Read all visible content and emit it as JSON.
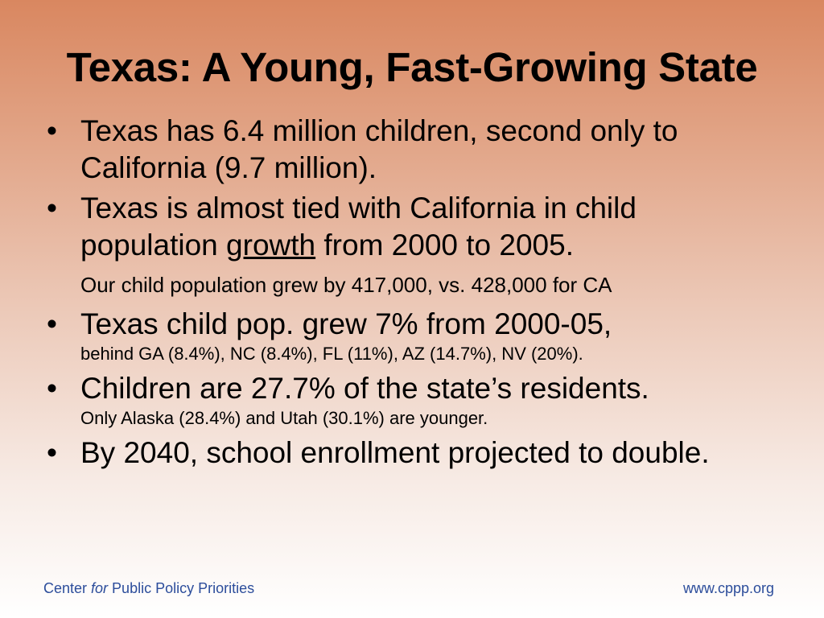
{
  "title": "Texas: A Young, Fast-Growing State",
  "bullet_char": "•",
  "bullets": [
    {
      "text": "Texas has 6.4 million children, second only to California (9.7 million)."
    },
    {
      "text_before": "Texas is almost tied with California in child population ",
      "underlined": "growth",
      "text_after": " from 2000 to 2005."
    },
    {
      "text": "Texas child pop. grew 7% from 2000-05,",
      "small": "behind GA (8.4%), NC (8.4%), FL (11%), AZ (14.7%), NV (20%)."
    },
    {
      "text": "Children are 27.7% of the state’s residents.",
      "small": "Only Alaska (28.4%) and Utah (30.1%) are younger."
    },
    {
      "text": "By 2040, school enrollment projected to double."
    }
  ],
  "subnote": "Our child population grew by 417,000, vs. 428,000 for CA",
  "footer": {
    "left_1": "Center ",
    "left_italic": "for",
    "left_2": " Public Policy Priorities",
    "right": "www.cppp.org"
  },
  "colors": {
    "background_top": "#d98760",
    "background_bottom": "#ffffff",
    "footer_text": "#2c4d9b",
    "body_text": "#000000"
  }
}
